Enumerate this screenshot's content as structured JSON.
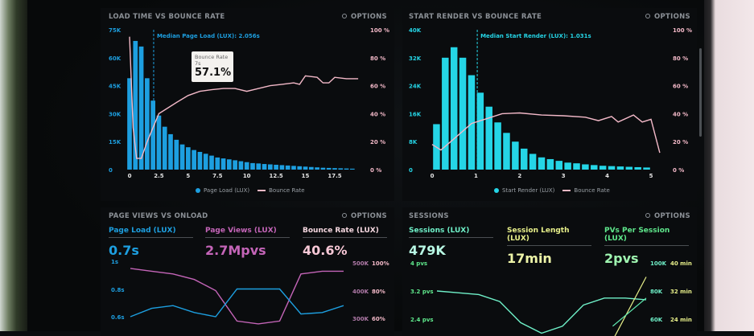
{
  "colors": {
    "blue": "#1d9fe0",
    "cyan": "#25d5e6",
    "pink": "#f3b9c8",
    "magenta": "#c465b8",
    "mint": "#6ff0c8",
    "yellow": "#e8f08a",
    "green": "#5fe88c"
  },
  "options_label": "OPTIONS",
  "panels": {
    "load": {
      "title": "LOAD TIME VS BOUNCE RATE",
      "median": "Median Page Load (LUX): 2.056s",
      "tooltip": {
        "label": "Bounce Rate",
        "x": "7s",
        "value": "57.1%"
      },
      "legend": [
        "Page Load (LUX)",
        "Bounce Rate"
      ]
    },
    "render": {
      "title": "START RENDER VS BOUNCE RATE",
      "median": "Median Start Render (LUX): 1.031s",
      "legend": [
        "Start Render (LUX)",
        "Bounce Rate"
      ]
    },
    "pageviews": {
      "title": "PAGE VIEWS VS ONLOAD",
      "kpis": [
        {
          "label": "Page Load (LUX)",
          "value": "0.7s"
        },
        {
          "label": "Page Views (LUX)",
          "value": "2.7Mpvs"
        },
        {
          "label": "Bounce Rate (LUX)",
          "value": "40.6%"
        }
      ]
    },
    "sessions": {
      "title": "SESSIONS",
      "kpis": [
        {
          "label": "Sessions (LUX)",
          "value": "479K"
        },
        {
          "label": "Session Length (LUX)",
          "value": "17min"
        },
        {
          "label": "PVs Per Session (LUX)",
          "value": "2pvs"
        }
      ]
    }
  },
  "chart_data": [
    {
      "type": "bar",
      "title": "LOAD TIME VS BOUNCE RATE",
      "x_ticks": [
        "0",
        "2.5",
        "5",
        "7.5",
        "10",
        "12.5",
        "15",
        "17.5"
      ],
      "y_ticks": [
        "0",
        "15K",
        "30K",
        "45K",
        "60K",
        "75K"
      ],
      "y2_ticks": [
        "0 %",
        "20 %",
        "40 %",
        "60 %",
        "80 %",
        "100 %"
      ],
      "ylim": [
        0,
        75
      ],
      "y2lim": [
        0,
        100
      ],
      "xlim": [
        0,
        20
      ],
      "bar_x_start": 0,
      "bar_step": 0.5,
      "series": [
        {
          "name": "Page Load (LUX)",
          "values": [
            49,
            69,
            66,
            49,
            37,
            29,
            23,
            19,
            16,
            13.5,
            12,
            10.5,
            9.5,
            8.5,
            7.5,
            6.5,
            6,
            5.5,
            5,
            4.5,
            4,
            3.5,
            3.3,
            3,
            2.8,
            2.6,
            2.4,
            2.2,
            2,
            1.8,
            1.6,
            1.4,
            1.2,
            1,
            0.9,
            0.8,
            0.7,
            0.6,
            0.5
          ]
        },
        {
          "name": "Bounce Rate",
          "type": "line",
          "points": [
            [
              0,
              95
            ],
            [
              0.3,
              30
            ],
            [
              0.6,
              8
            ],
            [
              1,
              8
            ],
            [
              1.5,
              20
            ],
            [
              2.5,
              40
            ],
            [
              4,
              48
            ],
            [
              5,
              53
            ],
            [
              6,
              56
            ],
            [
              7,
              57.1
            ],
            [
              8,
              58
            ],
            [
              9,
              58
            ],
            [
              10,
              56
            ],
            [
              11,
              58
            ],
            [
              12,
              60
            ],
            [
              13,
              61
            ],
            [
              14,
              62
            ],
            [
              14.5,
              61
            ],
            [
              15,
              67
            ],
            [
              16,
              66
            ],
            [
              16.5,
              62
            ],
            [
              17,
              62
            ],
            [
              17.5,
              66
            ],
            [
              18.5,
              65
            ],
            [
              19.5,
              65
            ]
          ]
        }
      ],
      "median": 2.056
    },
    {
      "type": "bar",
      "title": "START RENDER VS BOUNCE RATE",
      "x_ticks": [
        "0",
        "1",
        "2",
        "3",
        "4",
        "5"
      ],
      "y_ticks": [
        "0",
        "8K",
        "16K",
        "24K",
        "32K",
        "40K"
      ],
      "y2_ticks": [
        "0 %",
        "20 %",
        "40 %",
        "60 %",
        "80 %",
        "100 %"
      ],
      "ylim": [
        0,
        40
      ],
      "y2lim": [
        0,
        100
      ],
      "xlim": [
        0,
        5.3
      ],
      "bar_x_start": 0.1,
      "bar_step": 0.2,
      "series": [
        {
          "name": "Start Render (LUX)",
          "values": [
            13,
            32,
            35,
            32,
            27,
            22,
            18,
            13.5,
            10.5,
            8,
            6,
            4.5,
            3.5,
            3,
            2.5,
            2,
            1.8,
            1.5,
            1.3,
            1.1,
            1,
            0.9,
            0.8,
            0.7,
            0.6
          ]
        },
        {
          "name": "Bounce Rate",
          "type": "line",
          "points": [
            [
              0,
              18
            ],
            [
              0.2,
              14
            ],
            [
              0.5,
              22
            ],
            [
              0.9,
              33
            ],
            [
              1.2,
              36
            ],
            [
              1.6,
              40
            ],
            [
              2,
              40.5
            ],
            [
              2.5,
              39
            ],
            [
              3,
              38.5
            ],
            [
              3.5,
              37.5
            ],
            [
              3.8,
              35
            ],
            [
              4.1,
              38
            ],
            [
              4.25,
              34
            ],
            [
              4.6,
              39
            ],
            [
              4.8,
              34
            ],
            [
              5,
              36
            ],
            [
              5.2,
              12
            ]
          ]
        }
      ],
      "median": 1.031
    },
    {
      "type": "line",
      "y_ticks": [
        "0.6s",
        "0.8s",
        "1s"
      ],
      "y2_ticks": [
        "300K",
        "400K",
        "500K"
      ],
      "y3_ticks": [
        "60%",
        "80%",
        "100%"
      ],
      "series": [
        {
          "name": "Page Load (LUX)",
          "values": [
            0.6,
            0.66,
            0.68,
            0.63,
            0.6,
            0.8,
            0.8,
            0.8,
            0.62,
            0.63,
            0.68
          ]
        },
        {
          "name": "Page Views (LUX)",
          "values": [
            480,
            470,
            460,
            440,
            400,
            290,
            280,
            290,
            460,
            470,
            470
          ]
        }
      ]
    },
    {
      "type": "line",
      "y_ticks": [
        "2.4 pvs",
        "3.2 pvs",
        "4 pvs"
      ],
      "y2_ticks": [
        "60K",
        "80K",
        "100K"
      ],
      "y3_ticks": [
        "24 min",
        "32 min",
        "40 min"
      ],
      "series": [
        {
          "name": "PVs Per Session (LUX)",
          "values": [
            3.2,
            3.15,
            3.1,
            2.9,
            2.3,
            2.0,
            2.2,
            2.8,
            3.0,
            3.0,
            2.95
          ]
        },
        {
          "name": "Session Length (LUX)",
          "points": [
            [
              8.4,
              18
            ],
            [
              10,
              36
            ]
          ]
        },
        {
          "name": "Sessions (LUX)",
          "points": [
            [
              8.4,
              55
            ],
            [
              10,
              75
            ]
          ]
        }
      ]
    }
  ]
}
